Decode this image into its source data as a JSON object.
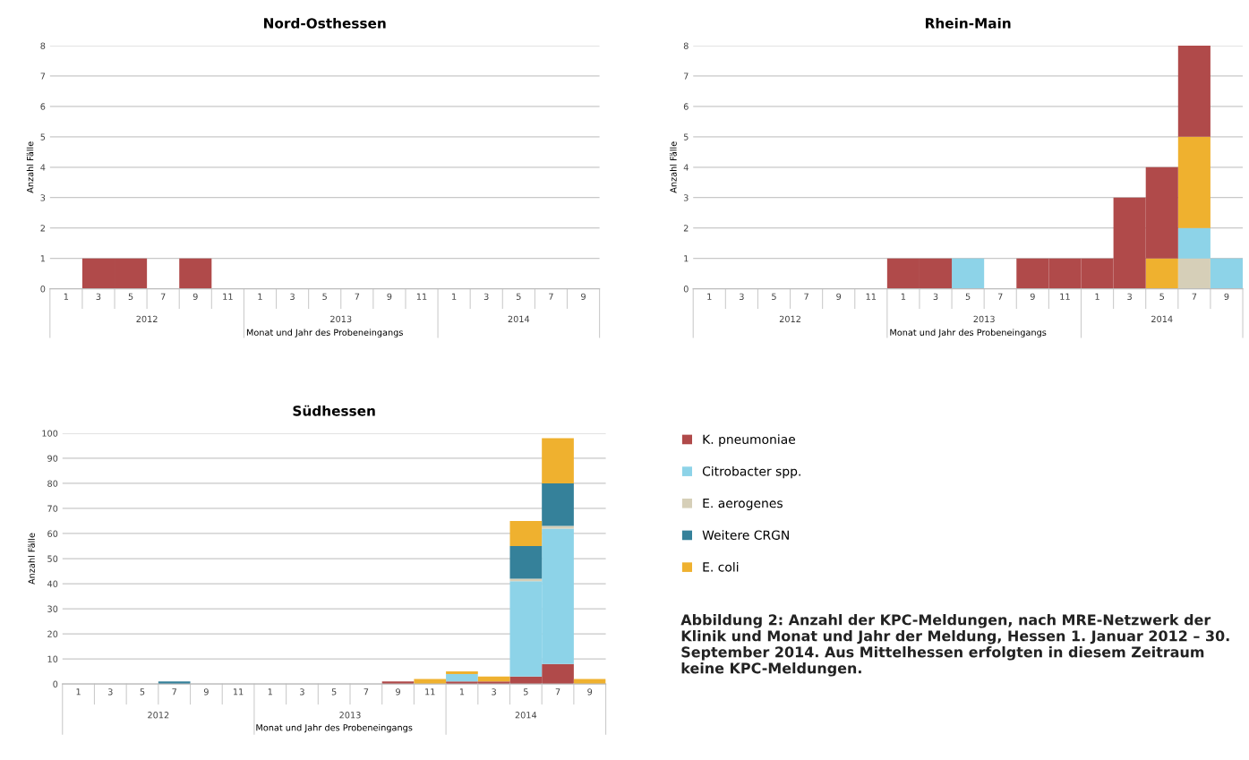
{
  "chart_data": [
    {
      "type": "bar",
      "title": "Nord-Osthessen",
      "xlabel": "Monat und Jahr des Probeneingangs",
      "ylabel": "Anzahl Fälle",
      "stacked": true,
      "grid": "y",
      "legend": false,
      "categories": [
        "1",
        "3",
        "5",
        "7",
        "9",
        "11",
        "1",
        "3",
        "5",
        "7",
        "9",
        "11",
        "1",
        "3",
        "5",
        "7",
        "9"
      ],
      "ylim": [
        0,
        8
      ],
      "yticks": [
        0,
        1,
        2,
        3,
        4,
        5,
        6,
        7,
        8
      ],
      "annotations": [
        "2012",
        "2013",
        "2014"
      ],
      "series": [
        {
          "color": "#b04a4a",
          "values": [
            0,
            1,
            1,
            0,
            1,
            0,
            0,
            0,
            0,
            0,
            0,
            0,
            0,
            0,
            0,
            0,
            0
          ]
        }
      ]
    },
    {
      "type": "bar",
      "title": "Rhein-Main",
      "xlabel": "Monat und Jahr des Probeneingangs",
      "ylabel": "Anzahl Fälle",
      "stacked": true,
      "grid": "y",
      "legend": false,
      "categories": [
        "1",
        "3",
        "5",
        "7",
        "9",
        "11",
        "1",
        "3",
        "5",
        "7",
        "9",
        "11",
        "1",
        "3",
        "5",
        "7",
        "9"
      ],
      "ylim": [
        0,
        8
      ],
      "yticks": [
        0,
        1,
        2,
        3,
        4,
        5,
        6,
        7,
        8
      ],
      "annotations": [
        "2012",
        "2013",
        "2014"
      ],
      "series": [
        {
          "color": "#d6cfb8",
          "values": [
            0,
            0,
            0,
            0,
            0,
            0,
            0,
            0,
            0,
            0,
            0,
            0,
            0,
            0,
            0,
            1,
            0
          ]
        },
        {
          "color": "#8dd3e8",
          "values": [
            0,
            0,
            0,
            0,
            0,
            0,
            0,
            0,
            1,
            0,
            0,
            0,
            0,
            0,
            0,
            1,
            1
          ]
        },
        {
          "color": "#efb12f",
          "values": [
            0,
            0,
            0,
            0,
            0,
            0,
            0,
            0,
            0,
            0,
            0,
            0,
            0,
            0,
            1,
            3,
            0
          ]
        },
        {
          "color": "#b04a4a",
          "values": [
            0,
            0,
            0,
            0,
            0,
            0,
            1,
            1,
            0,
            0,
            1,
            1,
            1,
            3,
            3,
            3,
            0
          ]
        }
      ]
    },
    {
      "type": "bar",
      "title": "Südhessen",
      "xlabel": "Monat und Jahr des Probeneingangs",
      "ylabel": "Anzahl Fälle",
      "stacked": true,
      "grid": "y",
      "legend": "top right",
      "categories": [
        "1",
        "3",
        "5",
        "7",
        "9",
        "11",
        "1",
        "3",
        "5",
        "7",
        "9",
        "11",
        "1",
        "3",
        "5",
        "7",
        "9"
      ],
      "ylim": [
        0,
        100
      ],
      "yticks": [
        0,
        10,
        20,
        30,
        40,
        50,
        60,
        70,
        80,
        90,
        100
      ],
      "annotations": [
        "2012",
        "2013",
        "2014",
        "Abbildung 2: Anzahl der KPC-Meldungen, nach MRE-Netzwerk der Klinik und Monat und Jahr der Meldung, Hessen 1. Januar 2012 – 30. September 2014. Aus Mittelhessen erfolgten in diesem Zeitraum keine KPC-Meldungen."
      ],
      "series": [
        {
          "name": "K. pneumoniae",
          "color": "#b04a4a",
          "values": [
            0,
            0,
            0,
            0,
            0,
            0,
            0,
            0,
            0,
            0,
            1,
            0,
            1,
            1,
            3,
            8,
            0
          ]
        },
        {
          "name": "Citrobacter spp.",
          "color": "#8dd3e8",
          "values": [
            0,
            0,
            0,
            0,
            0,
            0,
            0,
            0,
            0,
            0,
            0,
            0,
            3,
            0,
            38,
            54,
            0
          ]
        },
        {
          "name": "E. aerogenes",
          "color": "#d6cfb8",
          "values": [
            0,
            0,
            0,
            0,
            0,
            0,
            0,
            0,
            0,
            0,
            0,
            0,
            0,
            0,
            1,
            1,
            0
          ]
        },
        {
          "name": "Weitere CRGN",
          "color": "#35819a",
          "values": [
            0,
            0,
            0,
            1,
            0,
            0,
            0,
            0,
            0,
            0,
            0,
            0,
            0,
            0,
            13,
            17,
            0
          ]
        },
        {
          "name": "E. coli",
          "color": "#efb12f",
          "values": [
            0,
            0,
            0,
            0,
            0,
            0,
            0,
            0,
            0,
            0,
            0,
            2,
            1,
            2,
            10,
            18,
            2
          ]
        }
      ]
    }
  ]
}
